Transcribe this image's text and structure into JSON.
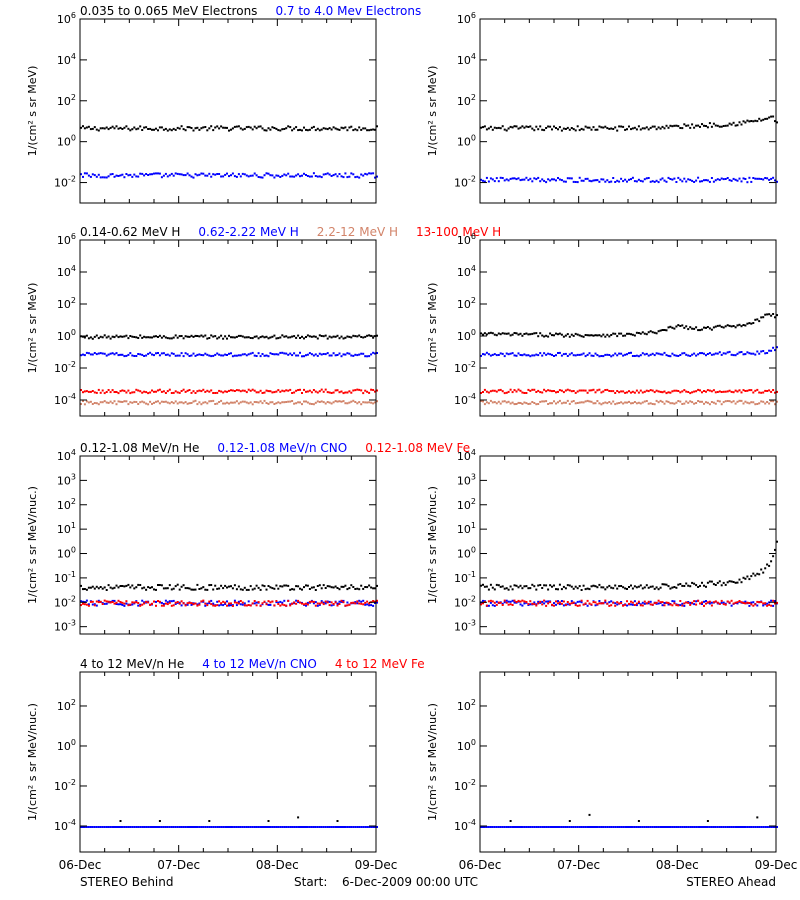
{
  "colors": {
    "black": "#000000",
    "blue": "#0000ff",
    "red": "#ff0000",
    "salmon": "#d2846a"
  },
  "footer": {
    "left": "STEREO Behind",
    "start_label": "Start:",
    "start_value": "6-Dec-2009 00:00 UTC",
    "right": "STEREO Ahead"
  },
  "chart_data": [
    {
      "type": "scatter",
      "row": "electrons",
      "spacecraft": "STEREO Behind",
      "legend": [
        {
          "text": "0.035 to 0.065 MeV Electrons",
          "color": "black"
        },
        {
          "text": "0.7 to 4.0 Mev Electrons",
          "color": "blue"
        }
      ],
      "ylabel": "1/(cm² s sr MeV)",
      "yscale": "log",
      "ylim": [
        0.001,
        1000000
      ],
      "yticks": [
        {
          "v": 0.01,
          "b": "10",
          "e": "-2"
        },
        {
          "v": 1,
          "b": "10",
          "e": "0"
        },
        {
          "v": 100,
          "b": "10",
          "e": "2"
        },
        {
          "v": 10000,
          "b": "10",
          "e": "4"
        },
        {
          "v": 1000000,
          "b": "10",
          "e": "6"
        }
      ],
      "xlim": [
        "2009-12-06",
        "2009-12-09"
      ],
      "xticks": [
        "06-Dec",
        "07-Dec",
        "08-Dec",
        "09-Dec"
      ],
      "series": [
        {
          "color": "black",
          "x": [
            0,
            0.25,
            0.5,
            0.75,
            1,
            1.25,
            1.5,
            1.75,
            2,
            2.25,
            2.5,
            2.75,
            3
          ],
          "y": [
            5,
            5,
            5,
            5,
            5,
            5,
            5,
            5,
            5,
            5,
            5,
            5,
            5
          ]
        },
        {
          "color": "blue",
          "x": [
            0,
            0.25,
            0.5,
            0.75,
            1,
            1.25,
            1.5,
            1.75,
            2,
            2.25,
            2.5,
            2.75,
            3
          ],
          "y": [
            0.025,
            0.025,
            0.025,
            0.025,
            0.025,
            0.025,
            0.025,
            0.025,
            0.025,
            0.025,
            0.025,
            0.025,
            0.025
          ]
        }
      ]
    },
    {
      "type": "scatter",
      "row": "electrons",
      "spacecraft": "STEREO Ahead",
      "legend": [],
      "ylabel": "1/(cm² s sr MeV)",
      "yscale": "log",
      "ylim": [
        0.001,
        1000000
      ],
      "yticks": [
        {
          "v": 0.01,
          "b": "10",
          "e": "-2"
        },
        {
          "v": 1,
          "b": "10",
          "e": "0"
        },
        {
          "v": 100,
          "b": "10",
          "e": "2"
        },
        {
          "v": 10000,
          "b": "10",
          "e": "4"
        },
        {
          "v": 1000000,
          "b": "10",
          "e": "6"
        }
      ],
      "xlim": [
        "2009-12-06",
        "2009-12-09"
      ],
      "xticks": [
        "06-Dec",
        "07-Dec",
        "08-Dec",
        "09-Dec"
      ],
      "series": [
        {
          "color": "black",
          "x": [
            0,
            0.5,
            1,
            1.5,
            2,
            2.25,
            2.5,
            2.7,
            2.8,
            2.9,
            2.95,
            3
          ],
          "y": [
            5,
            5,
            5,
            5,
            6,
            7,
            8,
            10,
            12,
            15,
            20,
            8
          ]
        },
        {
          "color": "blue",
          "x": [
            0,
            0.25,
            0.5,
            0.75,
            1,
            1.25,
            1.5,
            1.75,
            2,
            2.25,
            2.5,
            2.75,
            3
          ],
          "y": [
            0.015,
            0.015,
            0.015,
            0.015,
            0.015,
            0.015,
            0.015,
            0.015,
            0.015,
            0.015,
            0.015,
            0.015,
            0.015
          ]
        }
      ]
    },
    {
      "type": "scatter",
      "row": "protons",
      "spacecraft": "STEREO Behind",
      "legend": [
        {
          "text": "0.14-0.62 MeV H",
          "color": "black"
        },
        {
          "text": "0.62-2.22 MeV H",
          "color": "blue"
        },
        {
          "text": "2.2-12 MeV H",
          "color": "salmon"
        },
        {
          "text": "13-100 MeV H",
          "color": "red"
        }
      ],
      "ylabel": "1/(cm² s sr MeV)",
      "yscale": "log",
      "ylim": [
        1e-05,
        1000000
      ],
      "yticks": [
        {
          "v": 0.0001,
          "b": "10",
          "e": "-4"
        },
        {
          "v": 0.01,
          "b": "10",
          "e": "-2"
        },
        {
          "v": 1,
          "b": "10",
          "e": "0"
        },
        {
          "v": 100,
          "b": "10",
          "e": "2"
        },
        {
          "v": 10000,
          "b": "10",
          "e": "4"
        },
        {
          "v": 1000000,
          "b": "10",
          "e": "6"
        }
      ],
      "xlim": [
        "2009-12-06",
        "2009-12-09"
      ],
      "xticks": [
        "06-Dec",
        "07-Dec",
        "08-Dec",
        "09-Dec"
      ],
      "series": [
        {
          "color": "black",
          "x": [
            0,
            0.5,
            1,
            1.5,
            2,
            2.5,
            3
          ],
          "y": [
            1,
            1,
            1,
            1,
            1,
            1,
            1
          ]
        },
        {
          "color": "blue",
          "x": [
            0,
            0.5,
            1,
            1.5,
            2,
            2.5,
            3
          ],
          "y": [
            0.08,
            0.08,
            0.08,
            0.08,
            0.08,
            0.08,
            0.08
          ]
        },
        {
          "color": "red",
          "x": [
            0,
            0.5,
            1,
            1.5,
            2,
            2.5,
            3
          ],
          "y": [
            0.0004,
            0.0004,
            0.0004,
            0.0004,
            0.0004,
            0.0004,
            0.0004
          ]
        },
        {
          "color": "salmon",
          "x": [
            0,
            0.5,
            1,
            1.5,
            2,
            2.5,
            3
          ],
          "y": [
            8e-05,
            8e-05,
            8e-05,
            8e-05,
            8e-05,
            8e-05,
            8e-05
          ]
        }
      ]
    },
    {
      "type": "scatter",
      "row": "protons",
      "spacecraft": "STEREO Ahead",
      "legend": [],
      "ylabel": "1/(cm² s sr MeV)",
      "yscale": "log",
      "ylim": [
        1e-05,
        1000000
      ],
      "yticks": [
        {
          "v": 0.0001,
          "b": "10",
          "e": "-4"
        },
        {
          "v": 0.01,
          "b": "10",
          "e": "-2"
        },
        {
          "v": 1,
          "b": "10",
          "e": "0"
        },
        {
          "v": 100,
          "b": "10",
          "e": "2"
        },
        {
          "v": 10000,
          "b": "10",
          "e": "4"
        },
        {
          "v": 1000000,
          "b": "10",
          "e": "6"
        }
      ],
      "xlim": [
        "2009-12-06",
        "2009-12-09"
      ],
      "xticks": [
        "06-Dec",
        "07-Dec",
        "08-Dec",
        "09-Dec"
      ],
      "series": [
        {
          "color": "black",
          "x": [
            0,
            0.5,
            1,
            1.5,
            1.8,
            2.0,
            2.2,
            2.4,
            2.6,
            2.8,
            2.9,
            3
          ],
          "y": [
            1.5,
            1.4,
            1.3,
            1.4,
            2,
            5,
            3,
            4,
            5,
            10,
            30,
            20
          ]
        },
        {
          "color": "blue",
          "x": [
            0,
            0.5,
            1,
            1.5,
            2,
            2.5,
            2.8,
            2.9,
            3
          ],
          "y": [
            0.08,
            0.08,
            0.08,
            0.08,
            0.08,
            0.09,
            0.1,
            0.12,
            0.2
          ]
        },
        {
          "color": "red",
          "x": [
            0,
            0.5,
            1,
            1.5,
            2,
            2.5,
            3
          ],
          "y": [
            0.0004,
            0.0004,
            0.0004,
            0.0004,
            0.0004,
            0.0004,
            0.0004
          ]
        },
        {
          "color": "salmon",
          "x": [
            0,
            0.5,
            1,
            1.5,
            2,
            2.5,
            3
          ],
          "y": [
            8e-05,
            8e-05,
            8e-05,
            8e-05,
            8e-05,
            8e-05,
            8e-05
          ]
        }
      ]
    },
    {
      "type": "scatter",
      "row": "heavy-ions-low",
      "spacecraft": "STEREO Behind",
      "legend": [
        {
          "text": "0.12-1.08 MeV/n He",
          "color": "black"
        },
        {
          "text": "0.12-1.08 MeV/n CNO",
          "color": "blue"
        },
        {
          "text": "0.12-1.08 MeV Fe",
          "color": "red"
        }
      ],
      "ylabel": "1/(cm² s sr MeV/nuc.)",
      "yscale": "log",
      "ylim": [
        0.0005,
        10000
      ],
      "yticks": [
        {
          "v": 0.001,
          "b": "10",
          "e": "-3"
        },
        {
          "v": 0.01,
          "b": "10",
          "e": "-2"
        },
        {
          "v": 0.1,
          "b": "10",
          "e": "-1"
        },
        {
          "v": 1,
          "b": "10",
          "e": "0"
        },
        {
          "v": 10,
          "b": "10",
          "e": "1"
        },
        {
          "v": 100,
          "b": "10",
          "e": "2"
        },
        {
          "v": 1000,
          "b": "10",
          "e": "3"
        },
        {
          "v": 10000,
          "b": "10",
          "e": "4"
        }
      ],
      "xlim": [
        "2009-12-06",
        "2009-12-09"
      ],
      "xticks": [
        "06-Dec",
        "07-Dec",
        "08-Dec",
        "09-Dec"
      ],
      "series": [
        {
          "color": "black",
          "x": [
            0,
            0.5,
            1,
            1.5,
            2,
            2.5,
            3
          ],
          "y": [
            0.045,
            0.045,
            0.045,
            0.045,
            0.045,
            0.045,
            0.045
          ]
        },
        {
          "color": "blue",
          "x": [
            0,
            0.5,
            1,
            1.5,
            2,
            2.5,
            3
          ],
          "y": [
            0.01,
            0.01,
            0.01,
            0.01,
            0.01,
            0.01,
            0.01
          ]
        },
        {
          "color": "red",
          "x": [
            0,
            0.5,
            1,
            1.5,
            2,
            2.5,
            3
          ],
          "y": [
            0.01,
            0.01,
            0.01,
            0.01,
            0.01,
            0.01,
            0.01
          ]
        }
      ]
    },
    {
      "type": "scatter",
      "row": "heavy-ions-low",
      "spacecraft": "STEREO Ahead",
      "legend": [],
      "ylabel": "1/(cm² s sr MeV/nuc.)",
      "yscale": "log",
      "ylim": [
        0.0005,
        10000
      ],
      "yticks": [
        {
          "v": 0.001,
          "b": "10",
          "e": "-3"
        },
        {
          "v": 0.01,
          "b": "10",
          "e": "-2"
        },
        {
          "v": 0.1,
          "b": "10",
          "e": "-1"
        },
        {
          "v": 1,
          "b": "10",
          "e": "0"
        },
        {
          "v": 10,
          "b": "10",
          "e": "1"
        },
        {
          "v": 100,
          "b": "10",
          "e": "2"
        },
        {
          "v": 1000,
          "b": "10",
          "e": "3"
        },
        {
          "v": 10000,
          "b": "10",
          "e": "4"
        }
      ],
      "xlim": [
        "2009-12-06",
        "2009-12-09"
      ],
      "xticks": [
        "06-Dec",
        "07-Dec",
        "08-Dec",
        "09-Dec"
      ],
      "series": [
        {
          "color": "black",
          "x": [
            0,
            0.5,
            1,
            1.5,
            2,
            2.5,
            2.7,
            2.85,
            2.95,
            3
          ],
          "y": [
            0.045,
            0.045,
            0.045,
            0.045,
            0.05,
            0.07,
            0.1,
            0.2,
            0.5,
            3
          ]
        },
        {
          "color": "blue",
          "x": [
            0,
            0.5,
            1,
            1.5,
            2,
            2.5,
            3
          ],
          "y": [
            0.01,
            0.01,
            0.01,
            0.01,
            0.01,
            0.01,
            0.01
          ]
        },
        {
          "color": "red",
          "x": [
            0,
            0.5,
            1,
            1.5,
            2,
            2.5,
            3
          ],
          "y": [
            0.01,
            0.01,
            0.01,
            0.01,
            0.01,
            0.01,
            0.01
          ]
        }
      ]
    },
    {
      "type": "scatter",
      "row": "heavy-ions-high",
      "spacecraft": "STEREO Behind",
      "legend": [
        {
          "text": "4 to 12 MeV/n He",
          "color": "black"
        },
        {
          "text": "4 to 12 MeV/n CNO",
          "color": "blue"
        },
        {
          "text": "4 to 12 MeV Fe",
          "color": "red"
        }
      ],
      "ylabel": "1/(cm² s sr MeV/nuc.)",
      "yscale": "log",
      "ylim": [
        5e-06,
        5000
      ],
      "yticks": [
        {
          "v": 0.0001,
          "b": "10",
          "e": "-4"
        },
        {
          "v": 0.01,
          "b": "10",
          "e": "-2"
        },
        {
          "v": 1,
          "b": "10",
          "e": "0"
        },
        {
          "v": 100,
          "b": "10",
          "e": "2"
        }
      ],
      "xlim": [
        "2009-12-06",
        "2009-12-09"
      ],
      "xticks": [
        "06-Dec",
        "07-Dec",
        "08-Dec",
        "09-Dec"
      ],
      "series": [
        {
          "color": "blue",
          "x": [
            0,
            0.5,
            1,
            1.5,
            2,
            2.5,
            3
          ],
          "y": [
            0.0001,
            0.0001,
            0.0001,
            0.0001,
            0.0001,
            0.0001,
            0.0001
          ]
        },
        {
          "color": "black",
          "x": [
            0.4,
            0.8,
            1.3,
            1.9,
            2.2,
            2.6
          ],
          "y": [
            0.0002,
            0.0002,
            0.0002,
            0.0002,
            0.0003,
            0.0002
          ]
        }
      ]
    },
    {
      "type": "scatter",
      "row": "heavy-ions-high",
      "spacecraft": "STEREO Ahead",
      "legend": [],
      "ylabel": "1/(cm² s sr MeV/nuc.)",
      "yscale": "log",
      "ylim": [
        5e-06,
        5000
      ],
      "yticks": [
        {
          "v": 0.0001,
          "b": "10",
          "e": "-4"
        },
        {
          "v": 0.01,
          "b": "10",
          "e": "-2"
        },
        {
          "v": 1,
          "b": "10",
          "e": "0"
        },
        {
          "v": 100,
          "b": "10",
          "e": "2"
        }
      ],
      "xlim": [
        "2009-12-06",
        "2009-12-09"
      ],
      "xticks": [
        "06-Dec",
        "07-Dec",
        "08-Dec",
        "09-Dec"
      ],
      "series": [
        {
          "color": "blue",
          "x": [
            0,
            0.5,
            1,
            1.5,
            2,
            2.5,
            3
          ],
          "y": [
            0.0001,
            0.0001,
            0.0001,
            0.0001,
            0.0001,
            0.0001,
            0.0001
          ]
        },
        {
          "color": "black",
          "x": [
            0.3,
            0.9,
            1.1,
            1.6,
            2.3,
            2.8
          ],
          "y": [
            0.0002,
            0.0002,
            0.0004,
            0.0002,
            0.0002,
            0.0003
          ]
        }
      ]
    }
  ]
}
